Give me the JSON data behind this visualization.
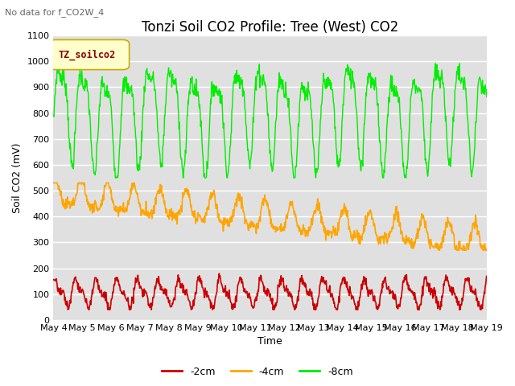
{
  "title": "Tonzi Soil CO2 Profile: Tree (West) CO2",
  "subtitle": "No data for f_CO2W_4",
  "xlabel": "Time",
  "ylabel": "Soil CO2 (mV)",
  "ylim": [
    0,
    1100
  ],
  "legend_label": "TZ_soilco2",
  "series_labels": [
    "-2cm",
    "-4cm",
    "-8cm"
  ],
  "series_colors": [
    "#cc0000",
    "#ffa500",
    "#00ee00"
  ],
  "x_tick_labels": [
    "May 4",
    "May 5",
    "May 6",
    "May 7",
    "May 8",
    "May 9",
    "May 10",
    "May 11",
    "May 12",
    "May 13",
    "May 14",
    "May 15",
    "May 16",
    "May 17",
    "May 18",
    "May 19"
  ],
  "background_color": "#ffffff",
  "plot_bg_color": "#e0e0e0",
  "grid_color": "#ffffff",
  "title_fontsize": 12,
  "axis_fontsize": 9,
  "tick_fontsize": 8,
  "legend_box_color": "#ffffcc",
  "legend_box_edge": "#ccaa00",
  "legend_text_color": "#880000"
}
